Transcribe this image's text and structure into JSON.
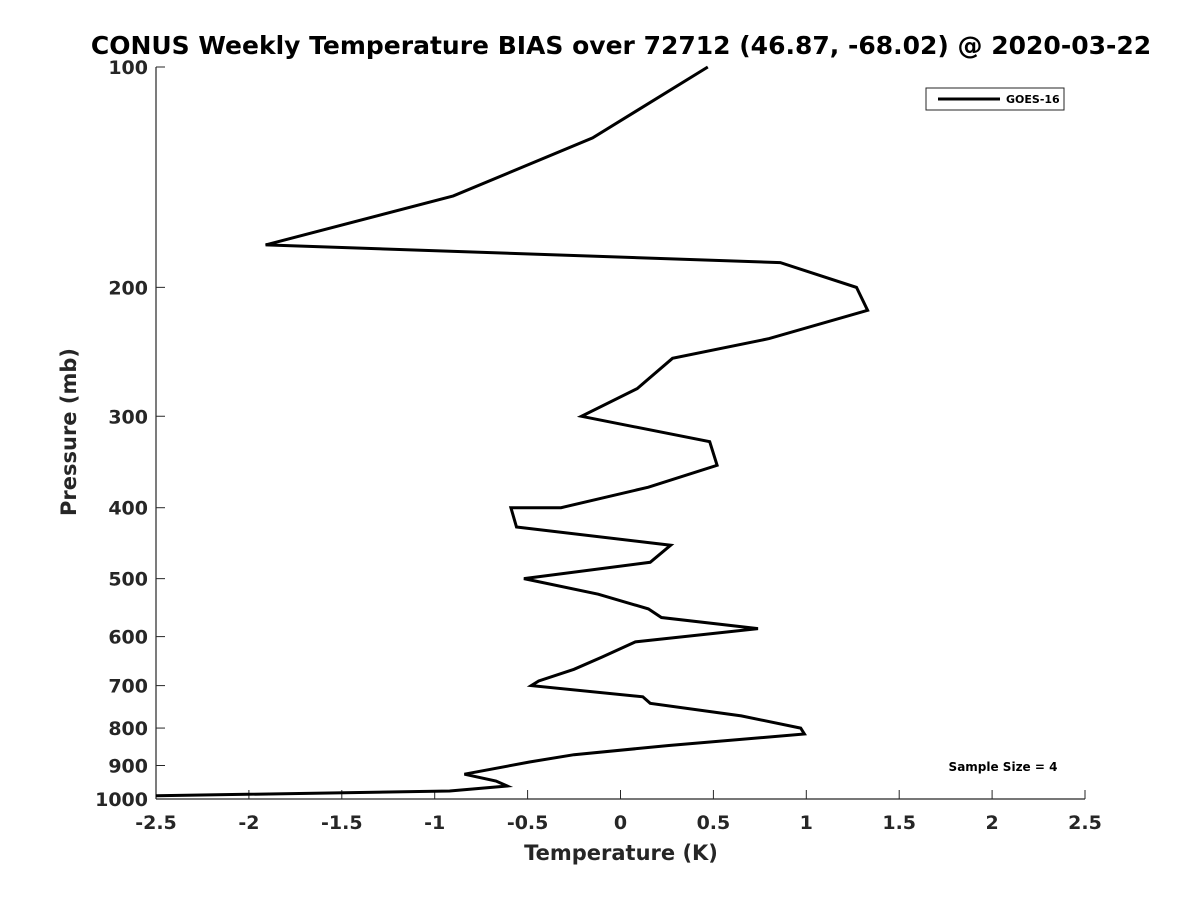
{
  "chart_data": {
    "type": "line",
    "title": "CONUS Weekly Temperature BIAS over 72712 (46.87, -68.02) @ 2020-03-22",
    "xlabel": "Temperature (K)",
    "ylabel": "Pressure (mb)",
    "xlim": [
      -2.5,
      2.5
    ],
    "ylim": [
      1000,
      100
    ],
    "y_scale": "log",
    "y_reversed": true,
    "x_ticks": [
      -2.5,
      -2,
      -1.5,
      -1,
      -0.5,
      0,
      0.5,
      1,
      1.5,
      2,
      2.5
    ],
    "x_tick_labels": [
      "-2.5",
      "-2",
      "-1.5",
      "-1",
      "-0.5",
      "0",
      "0.5",
      "1",
      "1.5",
      "2",
      "2.5"
    ],
    "y_ticks": [
      100,
      200,
      300,
      400,
      500,
      600,
      700,
      800,
      900,
      1000
    ],
    "y_tick_labels": [
      "100",
      "200",
      "300",
      "400",
      "500",
      "600",
      "700",
      "800",
      "900",
      "1000"
    ],
    "grid": false,
    "legend": {
      "position": "top-right",
      "entries": [
        "GOES-16"
      ]
    },
    "annotation": "Sample Size = 4",
    "line_color": "#000000",
    "series": [
      {
        "name": "GOES-16",
        "x": [
          0.47,
          -0.15,
          -0.9,
          -1.91,
          0.86,
          1.27,
          1.33,
          0.8,
          0.28,
          0.09,
          -0.21,
          0.48,
          0.52,
          0.15,
          -0.32,
          -0.59,
          -0.56,
          0.27,
          0.16,
          -0.52,
          -0.12,
          0.15,
          0.22,
          0.74,
          0.08,
          -0.1,
          -0.25,
          -0.44,
          -0.48,
          0.12,
          0.16,
          0.65,
          0.97,
          0.99,
          0.26,
          -0.25,
          -0.49,
          -0.84,
          -0.67,
          -0.61,
          -0.92,
          -2.5
        ],
        "y": [
          100,
          125,
          150,
          175,
          185,
          200,
          215,
          235,
          250,
          275,
          300,
          325,
          350,
          375,
          400,
          400,
          425,
          450,
          475,
          500,
          525,
          550,
          565,
          585,
          610,
          640,
          665,
          690,
          700,
          725,
          740,
          770,
          800,
          815,
          845,
          870,
          890,
          925,
          945,
          960,
          975,
          990
        ]
      }
    ]
  }
}
